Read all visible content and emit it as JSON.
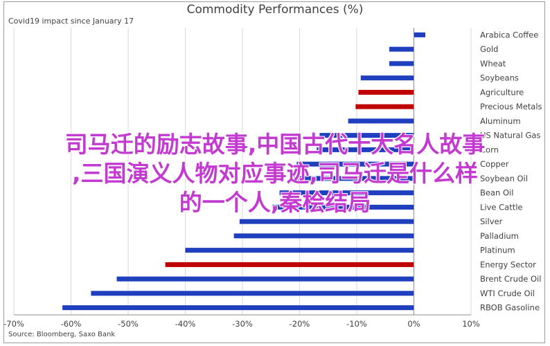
{
  "chart_data": {
    "type": "bar",
    "orientation": "horizontal",
    "title": "Commodity Performances (%)",
    "subtitle": "Covid19 impact since January 17",
    "source": "Source: Bloomberg, Saxo Bank",
    "categories": [
      "Arabica Coffee",
      "Gold",
      "Wheat",
      "Soybeans",
      "Agriculture",
      "Precious Metals",
      "Aluminum",
      "US Natural Gas",
      "Corn",
      "Copper",
      "Soybean Oil",
      "Bean Oil",
      "Live Cattle",
      "Silver",
      "Palladium",
      "Platinum",
      "Energy Sector",
      "Brent Crude Oil",
      "WTI Crude Oil",
      "RBOB Gasoline"
    ],
    "values": [
      2,
      -4.3,
      -4.3,
      -9.3,
      -9.7,
      -10.2,
      -11.5,
      -16.5,
      -17,
      -20.5,
      -21,
      -23.5,
      -24.8,
      -30.5,
      -31.5,
      -40,
      -43.5,
      -52,
      -56.5,
      -61.5
    ],
    "bar_colors": [
      "#1f3fbf",
      "#1f3fbf",
      "#1f3fbf",
      "#1f3fbf",
      "#c00000",
      "#c00000",
      "#1f3fbf",
      "#1f3fbf",
      "#1f3fbf",
      "#1f3fbf",
      "#1f3fbf",
      "#1f3fbf",
      "#1f3fbf",
      "#1f3fbf",
      "#1f3fbf",
      "#1f3fbf",
      "#c00000",
      "#1f3fbf",
      "#1f3fbf",
      "#1f3fbf"
    ],
    "xlim": [
      -70,
      10
    ],
    "xticks": [
      "-70%",
      "-60%",
      "-50%",
      "-40%",
      "-30%",
      "-20%",
      "-10%",
      "0%",
      "10%"
    ],
    "xtick_values": [
      -70,
      -60,
      -50,
      -40,
      -30,
      -20,
      -10,
      0,
      10
    ],
    "grid": "vertical",
    "colors": {
      "primary": "#1f3fbf",
      "highlight": "#c00000"
    }
  },
  "overlay_text": {
    "line1": "司马迁的励志故事,中国古代十大名人故事",
    "line2": ",三国演义人物对应事迹,司马迁是什么样",
    "line3": "的一个人,秦桧结局"
  }
}
